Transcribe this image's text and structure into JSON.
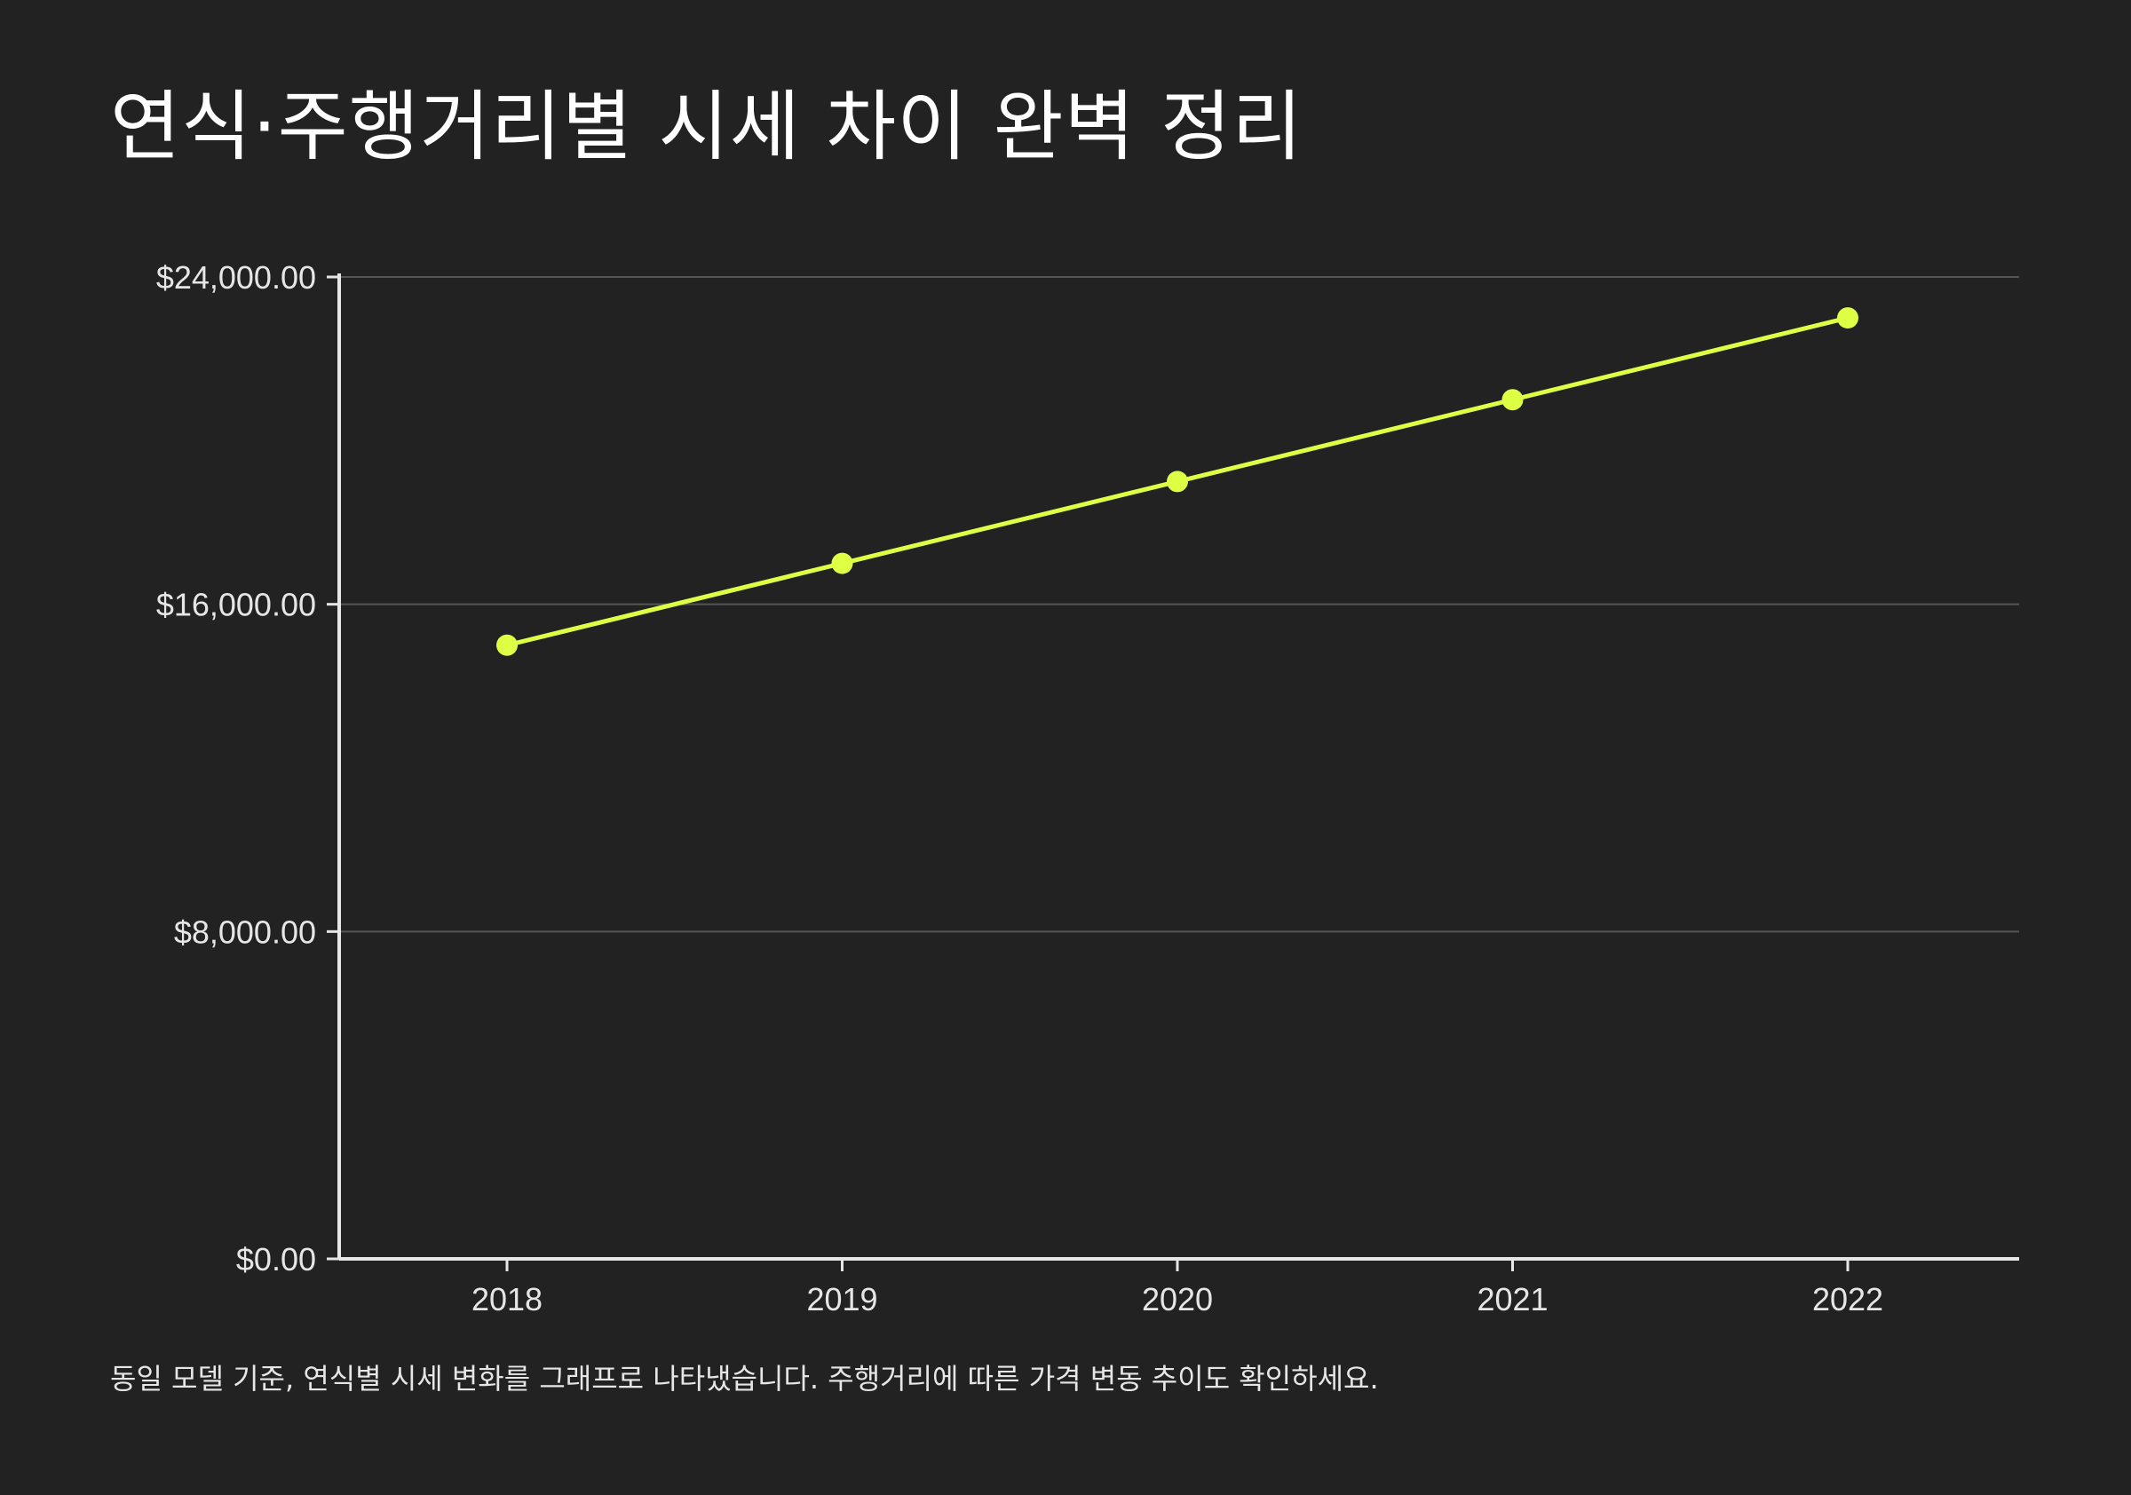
{
  "title": "연식·주행거리별 시세 차이 완벽 정리",
  "footnote": "동일 모델 기준, 연식별 시세 변화를 그래프로 나타냈습니다. 주행거리에 따른 가격 변동 추이도 확인하세요.",
  "colors": {
    "background": "#222222",
    "line": "#DDFF44",
    "axis": "#e6e6e6",
    "grid": "#555555",
    "text": "#ffffff"
  },
  "chart_data": {
    "type": "line",
    "title": "연식·주행거리별 시세 차이 완벽 정리",
    "categories": [
      "2018",
      "2019",
      "2020",
      "2021",
      "2022"
    ],
    "series": [
      {
        "values": [
          15000,
          17000,
          19000,
          21000,
          23000
        ]
      }
    ],
    "ylim": [
      0,
      24000
    ],
    "yticks": [
      0,
      8000,
      16000,
      24000
    ],
    "ytick_labels": [
      "$0.00",
      "$8,000.00",
      "$16,000.00",
      "$24,000.00"
    ],
    "xlabel": "",
    "ylabel": "",
    "grid": true,
    "markers": true
  }
}
